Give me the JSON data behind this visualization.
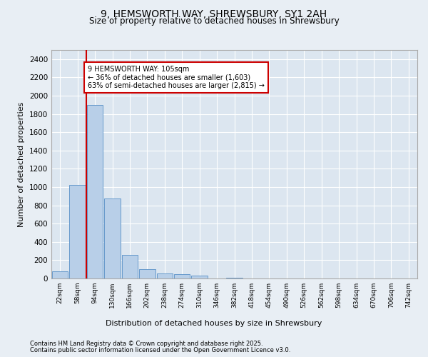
{
  "title_line1": "9, HEMSWORTH WAY, SHREWSBURY, SY1 2AH",
  "title_line2": "Size of property relative to detached houses in Shrewsbury",
  "xlabel": "Distribution of detached houses by size in Shrewsbury",
  "ylabel": "Number of detached properties",
  "bin_labels": [
    "22sqm",
    "58sqm",
    "94sqm",
    "130sqm",
    "166sqm",
    "202sqm",
    "238sqm",
    "274sqm",
    "310sqm",
    "346sqm",
    "382sqm",
    "418sqm",
    "454sqm",
    "490sqm",
    "526sqm",
    "562sqm",
    "598sqm",
    "634sqm",
    "670sqm",
    "706sqm",
    "742sqm"
  ],
  "bar_values": [
    75,
    1025,
    1900,
    875,
    260,
    105,
    55,
    50,
    35,
    0,
    5,
    0,
    0,
    0,
    0,
    0,
    0,
    0,
    0,
    0,
    0
  ],
  "bar_color": "#b8cfe8",
  "bar_edge_color": "#6699cc",
  "vline_x": 1.5,
  "vline_color": "#cc0000",
  "annotation_text": "9 HEMSWORTH WAY: 105sqm\n← 36% of detached houses are smaller (1,603)\n63% of semi-detached houses are larger (2,815) →",
  "annotation_box_color": "#ffffff",
  "annotation_box_edge_color": "#cc0000",
  "ylim": [
    0,
    2500
  ],
  "yticks": [
    0,
    200,
    400,
    600,
    800,
    1000,
    1200,
    1400,
    1600,
    1800,
    2000,
    2200,
    2400
  ],
  "bg_color": "#e8eef4",
  "plot_bg_color": "#dce6f0",
  "footer_line1": "Contains HM Land Registry data © Crown copyright and database right 2025.",
  "footer_line2": "Contains public sector information licensed under the Open Government Licence v3.0."
}
